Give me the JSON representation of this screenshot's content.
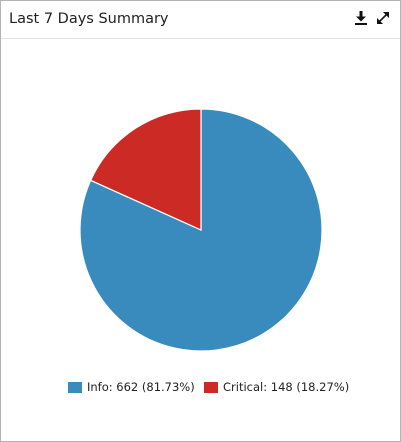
{
  "panel": {
    "title": "Last 7 Days Summary",
    "download_icon": "download-icon",
    "expand_icon": "expand-icon"
  },
  "legend": {
    "items": [
      {
        "label": "Info: 662 (81.73%)",
        "color": "#3a8bbd"
      },
      {
        "label": "Critical: 148 (18.27%)",
        "color": "#cc2b25"
      }
    ]
  },
  "chart_data": {
    "type": "pie",
    "categories": [
      "Info",
      "Critical"
    ],
    "values": [
      662,
      148
    ],
    "percentages": [
      81.73,
      18.27
    ],
    "colors": [
      "#3a8bbd",
      "#cc2b25"
    ],
    "legend_position": "bottom"
  }
}
